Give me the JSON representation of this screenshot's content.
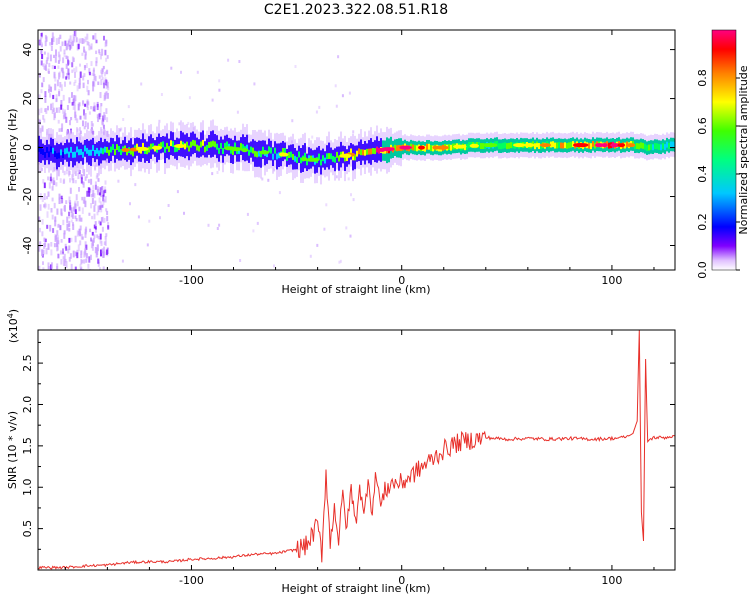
{
  "title": "C2E1.2023.322.08.51.R18",
  "chart_data": [
    {
      "type": "heatmap",
      "name": "spectrogram",
      "xlabel": "Height of straight line (km)",
      "ylabel": "Frequency (Hz)",
      "xlim": [
        -173,
        130
      ],
      "ylim": [
        -50,
        48
      ],
      "xticks": [
        -100,
        0,
        100
      ],
      "yticks": [
        40,
        20,
        0,
        -20,
        -40
      ],
      "grid": false,
      "colorbar": {
        "label": "Normalized spectral amplitude",
        "range": [
          0,
          1
        ],
        "ticks": [
          0.0,
          0.2,
          0.4,
          0.6,
          0.8
        ],
        "tick_labels": [
          "0.0",
          "0.2",
          "0.4",
          "0.6",
          "0.8"
        ],
        "colormap": [
          "#ffffff",
          "#c080ff",
          "#5000ff",
          "#0000ff",
          "#00ffff",
          "#00ff00",
          "#ffff00",
          "#ff8000",
          "#ff0000",
          "#ff0080"
        ]
      },
      "ridge": {
        "x": [
          -173,
          -160,
          -145,
          -130,
          -115,
          -100,
          -85,
          -75,
          -65,
          -55,
          -45,
          -38,
          -30,
          -20,
          -10,
          0,
          20,
          40,
          60,
          80,
          100,
          110,
          113,
          116,
          130
        ],
        "y": [
          -2,
          -2,
          -1,
          -1,
          0,
          1,
          0,
          -1,
          -2,
          -3,
          -5,
          -5,
          -4,
          -2,
          -1,
          0,
          0,
          1,
          1,
          1,
          1,
          1,
          1,
          0,
          1
        ],
        "intensity": [
          0.3,
          0.4,
          0.5,
          0.8,
          0.7,
          0.75,
          0.65,
          0.6,
          0.6,
          0.65,
          0.6,
          0.55,
          0.7,
          0.85,
          0.95,
          0.95,
          0.8,
          0.6,
          0.7,
          0.85,
          0.95,
          0.8,
          0.7,
          0.6,
          0.5
        ]
      },
      "noise_band_x": [
        -173,
        -140
      ]
    },
    {
      "type": "line",
      "name": "snr",
      "xlabel": "Height of straight line (km)",
      "ylabel": "SNR (10 * v/v)",
      "yscale_label": "(x10",
      "yscale_exponent": "4",
      "xlim": [
        -173,
        130
      ],
      "ylim": [
        0,
        2.9
      ],
      "xticks": [
        -100,
        0,
        100
      ],
      "yticks": [
        0.5,
        1.0,
        1.5,
        2.0,
        2.5
      ],
      "grid": false,
      "series": [
        {
          "color": "#e8302a",
          "x": [
            -173,
            -160,
            -150,
            -140,
            -130,
            -120,
            -110,
            -100,
            -90,
            -80,
            -70,
            -60,
            -50,
            -45,
            -40,
            -38,
            -36,
            -34,
            -32,
            -30,
            -28,
            -26,
            -24,
            -22,
            -20,
            -18,
            -16,
            -14,
            -12,
            -10,
            -8,
            -5,
            0,
            5,
            10,
            15,
            20,
            25,
            30,
            35,
            40,
            50,
            60,
            70,
            80,
            90,
            100,
            105,
            108,
            110,
            112,
            113,
            114,
            115,
            116,
            117,
            118,
            120,
            125,
            130
          ],
          "y": [
            0.03,
            0.03,
            0.05,
            0.06,
            0.09,
            0.1,
            0.1,
            0.13,
            0.14,
            0.16,
            0.19,
            0.2,
            0.25,
            0.3,
            0.55,
            0.2,
            1.2,
            0.3,
            0.8,
            0.35,
            0.9,
            0.5,
            1.0,
            0.55,
            1.05,
            0.6,
            1.15,
            0.7,
            1.2,
            0.75,
            0.95,
            1.05,
            1.05,
            1.15,
            1.25,
            1.35,
            1.45,
            1.52,
            1.56,
            1.58,
            1.6,
            1.58,
            1.59,
            1.58,
            1.59,
            1.58,
            1.59,
            1.6,
            1.62,
            1.65,
            1.8,
            2.9,
            0.7,
            0.35,
            2.55,
            1.55,
            1.58,
            1.6,
            1.6,
            1.62
          ]
        }
      ]
    }
  ]
}
